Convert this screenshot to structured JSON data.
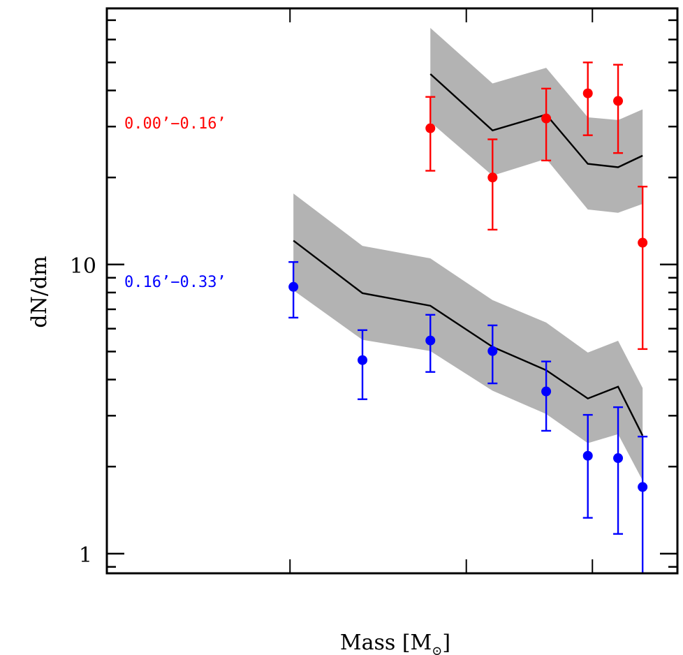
{
  "chart_data": {
    "type": "scatter",
    "title": "",
    "xlabel": "Mass [M",
    "xlabel_sub": "⊙",
    "xlabel_close": "]",
    "ylabel": "dN/dm",
    "yscale": "log",
    "ylim": [
      0.855,
      76.9
    ],
    "xscale": "unlabeled (log mass)",
    "xlim": [
      0,
      1
    ],
    "x_ticks": [
      0.321,
      0.63,
      0.851
    ],
    "x_tick_labels": [],
    "y_major_ticks": [
      1,
      10
    ],
    "y_major_tick_labels": [
      "1",
      "10"
    ],
    "y_minor_ticks": [
      0.9,
      2,
      3,
      4,
      5,
      6,
      7,
      8,
      9,
      20,
      30,
      40,
      50,
      60,
      70
    ],
    "grid": false,
    "legend": "none (inline labels at left)",
    "series": [
      {
        "name": "0.00'−0.16'",
        "label": "0.00’−0.16’",
        "color": "#ff0000",
        "x": [
          0.567,
          0.676,
          0.77,
          0.843,
          0.896,
          0.939
        ],
        "y": [
          29.6,
          20.0,
          32.0,
          39.1,
          36.8,
          11.9
        ],
        "y_err_high": [
          38.0,
          27.1,
          40.6,
          50.0,
          49.1,
          18.6
        ],
        "y_err_low": [
          21.1,
          13.2,
          22.9,
          28.0,
          24.3,
          5.1
        ],
        "model": {
          "x": [
            0.567,
            0.676,
            0.77,
            0.843,
            0.896,
            0.939
          ],
          "line": [
            45.6,
            29.1,
            33.0,
            22.3,
            21.7,
            23.8
          ],
          "upper": [
            65.8,
            42.3,
            47.9,
            32.3,
            31.6,
            34.4
          ],
          "lower": [
            31.1,
            20.3,
            23.2,
            15.5,
            15.1,
            16.2
          ],
          "line_color": "#000000",
          "band_color": "#b3b3b3"
        }
      },
      {
        "name": "0.16'−0.33'",
        "label": "0.16’−0.33’",
        "color": "#0000ff",
        "x": [
          0.327,
          0.448,
          0.567,
          0.676,
          0.77,
          0.843,
          0.896,
          0.939
        ],
        "y": [
          8.37,
          4.67,
          5.46,
          5.02,
          3.64,
          2.18,
          2.14,
          1.7
        ],
        "y_err_high": [
          10.2,
          5.93,
          6.7,
          6.16,
          4.62,
          3.02,
          3.21,
          2.54
        ],
        "y_err_low": [
          6.55,
          3.42,
          4.25,
          3.88,
          2.66,
          1.33,
          1.17,
          0.85
        ],
        "model": {
          "x": [
            0.327,
            0.448,
            0.567,
            0.676,
            0.77,
            0.843,
            0.896,
            0.939
          ],
          "line": [
            12.1,
            7.96,
            7.2,
            5.19,
            4.31,
            3.44,
            3.78,
            2.56
          ],
          "upper": [
            17.6,
            11.6,
            10.5,
            7.53,
            6.3,
            4.96,
            5.45,
            3.74
          ],
          "lower": [
            8.14,
            5.49,
            5.02,
            3.66,
            3.04,
            2.41,
            2.59,
            1.79
          ],
          "line_color": "#000000",
          "band_color": "#b3b3b3"
        }
      }
    ]
  }
}
